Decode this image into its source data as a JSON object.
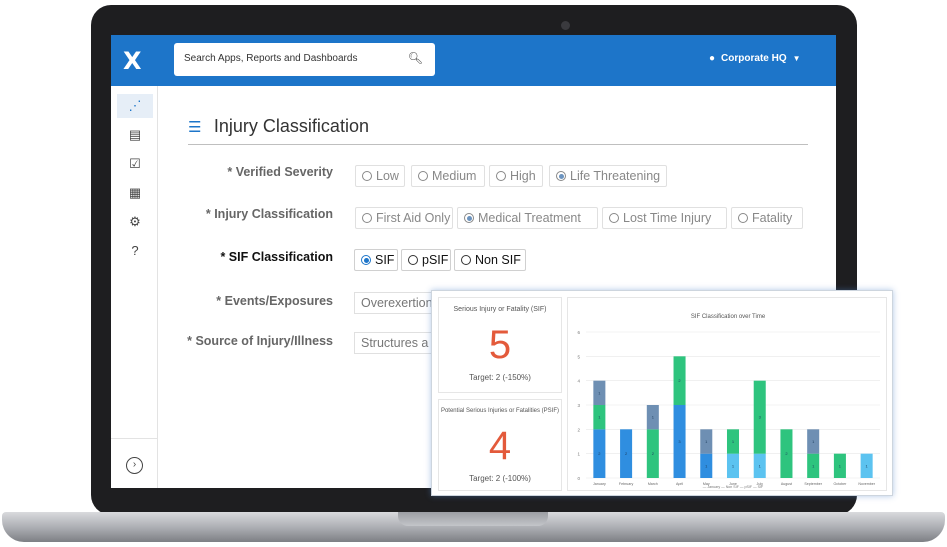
{
  "app": {
    "logo_text": "X",
    "search_placeholder": "Search Apps, Reports and Dashboards",
    "location_label": "Corporate HQ"
  },
  "sidebar": {
    "items": [
      {
        "icon": "workflow-icon",
        "glyph": "⋰",
        "active": true
      },
      {
        "icon": "report-card-icon",
        "glyph": "▤",
        "active": false
      },
      {
        "icon": "checkbox-icon",
        "glyph": "☑",
        "active": false
      },
      {
        "icon": "calendar-icon",
        "glyph": "▦",
        "active": false
      },
      {
        "icon": "gear-icon",
        "glyph": "⚙",
        "active": false
      },
      {
        "icon": "help-icon",
        "glyph": "?",
        "active": false
      }
    ],
    "expand_glyph": "›"
  },
  "form": {
    "title": "Injury Classification",
    "verified_severity": {
      "label": "* Verified Severity",
      "options": [
        "Low",
        "Medium",
        "High",
        "Life Threatening"
      ],
      "selected": 3
    },
    "injury_classification": {
      "label": "* Injury Classification",
      "options": [
        "First Aid Only",
        "Medical Treatment",
        "Lost Time Injury",
        "Fatality"
      ],
      "selected": 1
    },
    "sif_classification": {
      "label": "* SIF Classification",
      "options": [
        "SIF",
        "pSIF",
        "Non SIF"
      ],
      "selected": 0
    },
    "events_exposures": {
      "label": "* Events/Exposures",
      "value": "Overexertion"
    },
    "source_of_injury": {
      "label": "* Source of Injury/Illness",
      "value": "Structures a"
    }
  },
  "dashboard": {
    "sif_card": {
      "title": "Serious Injury or Fatality (SIF)",
      "value": "5",
      "target": "Target: 2 (-150%)"
    },
    "psif_card": {
      "title": "Potential Serious Injuries or Fatalities (PSIF)",
      "value": "4",
      "target": "Target: 2 (-100%)"
    },
    "chart_colors": {
      "dark_blue": "#6e8fb3",
      "blue": "#2f8ee0",
      "green": "#2ec47e",
      "light_blue": "#5cc3f0"
    },
    "chart_data": {
      "type": "bar",
      "stacked": true,
      "title": "SIF Classification over Time",
      "categories": [
        "January",
        "February",
        "March",
        "April",
        "May",
        "June",
        "July",
        "August",
        "September",
        "October",
        "November"
      ],
      "ylim": [
        0,
        6
      ],
      "yticks": [
        "0",
        "1",
        "2",
        "3",
        "4",
        "5",
        "6"
      ],
      "series": [
        {
          "color": "blue",
          "values": [
            2,
            2,
            0,
            3,
            1,
            0,
            0,
            0,
            0,
            0,
            0
          ]
        },
        {
          "color": "light_blue",
          "values": [
            0,
            0,
            0,
            0,
            0,
            1,
            1,
            0,
            0,
            0,
            1
          ]
        },
        {
          "color": "green",
          "values": [
            1,
            0,
            2,
            2,
            0,
            1,
            3,
            2,
            1,
            1,
            0
          ]
        },
        {
          "color": "dark_blue",
          "values": [
            1,
            0,
            1,
            0,
            1,
            0,
            0,
            0,
            1,
            0,
            0
          ]
        }
      ],
      "legend_text": "— January — Non SIF — pSIF — SIF",
      "legend_position": "bottom"
    }
  }
}
